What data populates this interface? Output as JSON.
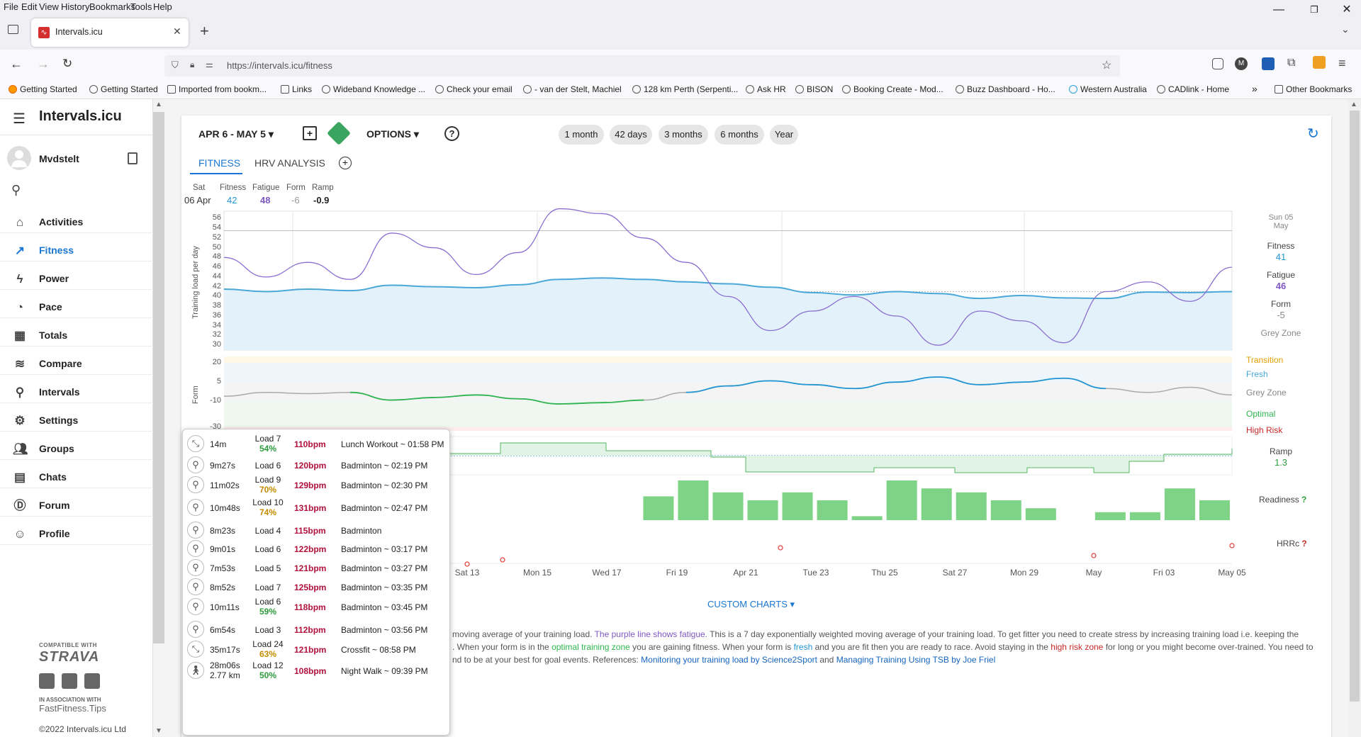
{
  "browser": {
    "menu": [
      "File",
      "Edit",
      "View",
      "History",
      "Bookmarks",
      "Tools",
      "Help"
    ],
    "tab_title": "Intervals.icu",
    "url": "https://intervals.icu/fitness",
    "bookmarks": [
      "Getting Started",
      "Getting Started",
      "Imported from bookm...",
      "Links",
      "Wideband Knowledge ...",
      "Check your email",
      "- van der Stelt, Machiel",
      "128 km Perth (Serpenti...",
      "Ask HR",
      "BISON",
      "Booking Create - Mod...",
      "Buzz Dashboard - Ho...",
      "Western Australia",
      "CADlink - Home"
    ],
    "other_bookmarks": "Other Bookmarks"
  },
  "app": {
    "brand": "Intervals.icu",
    "user": "Mvdstelt",
    "nav": [
      {
        "label": "Activities",
        "icon": "home-icon"
      },
      {
        "label": "Fitness",
        "icon": "trending-icon",
        "active": true
      },
      {
        "label": "Power",
        "icon": "bolt-icon"
      },
      {
        "label": "Pace",
        "icon": "watch-icon"
      },
      {
        "label": "Totals",
        "icon": "calculator-icon"
      },
      {
        "label": "Compare",
        "icon": "compare-icon"
      },
      {
        "label": "Intervals",
        "icon": "search-icon"
      },
      {
        "label": "Settings",
        "icon": "gear-icon"
      },
      {
        "label": "Groups",
        "icon": "group-icon"
      },
      {
        "label": "Chats",
        "icon": "chat-icon"
      },
      {
        "label": "Forum",
        "icon": "forum-icon"
      },
      {
        "label": "Profile",
        "icon": "face-icon"
      }
    ],
    "footer": {
      "compatible": "COMPATIBLE WITH",
      "strava": "STRAVA",
      "assoc": "IN ASSOCIATION WITH",
      "fastfitness": "FastFitness.Tips",
      "copyright": "©2022 Intervals.icu Ltd"
    }
  },
  "toolbar": {
    "date_range": "APR 6 - MAY 5",
    "options": "OPTIONS",
    "ranges": [
      "1 month",
      "42 days",
      "3 months",
      "6 months",
      "Year"
    ]
  },
  "tabs": [
    "FITNESS",
    "HRV ANALYSIS"
  ],
  "day_summary": {
    "dow": "Sat",
    "date": "06 Apr",
    "fitness_label": "Fitness",
    "fitness": "42",
    "fatigue_label": "Fatigue",
    "fatigue": "48",
    "form_label": "Form",
    "form": "-6",
    "ramp_label": "Ramp",
    "ramp": "-0.9"
  },
  "right_panel": {
    "date_line1": "Sun 05",
    "date_line2": "May",
    "fitness_label": "Fitness",
    "fitness": "41",
    "fatigue_label": "Fatigue",
    "fatigue": "46",
    "form_label": "Form",
    "form": "-5",
    "zone": "Grey Zone",
    "zones": [
      "Transition",
      "Fresh",
      "Grey Zone",
      "Optimal",
      "High Risk"
    ],
    "ramp_label": "Ramp",
    "ramp": "1.3",
    "readiness": "Readiness",
    "hrrc": "HRRc",
    "q": "?"
  },
  "chart_data": {
    "type": "line",
    "ylabel": "Training load per day",
    "yticks": [
      56,
      54,
      52,
      50,
      48,
      46,
      44,
      42,
      40,
      38,
      36,
      34,
      32,
      30
    ],
    "form_ylabel": "Form",
    "form_yticks": [
      20,
      5,
      -10,
      -30
    ],
    "xticks": [
      "Sat 13",
      "Mon 15",
      "Wed 17",
      "Fri 19",
      "Apr 21",
      "Tue 23",
      "Thu 25",
      "Sat 27",
      "Mon 29",
      "May",
      "Fri 03",
      "May 05"
    ],
    "series": [
      {
        "name": "Fitness",
        "color": "#4aa8d8",
        "values": [
          41.5,
          41,
          41.5,
          41.2,
          42.3,
          42,
          41.8,
          42.4,
          43.5,
          43.8,
          43.5,
          43,
          42.6,
          41.9,
          40.8,
          40.3,
          41,
          40.6,
          39.6,
          40.2,
          39.7,
          39.6,
          40.9,
          40.8,
          41.0
        ]
      },
      {
        "name": "Fatigue",
        "color": "#8a6fd0",
        "values": [
          48,
          44,
          47,
          43.5,
          53,
          50,
          44.5,
          49,
          58,
          57,
          52,
          47,
          40,
          33,
          37,
          40,
          36,
          30,
          37,
          35,
          30.5,
          41,
          43,
          39,
          46
        ]
      },
      {
        "name": "Form",
        "color": "#aaa",
        "values": [
          -6,
          -3,
          -4,
          -3,
          -9,
          -7,
          -5,
          -8,
          -12,
          -11,
          -9,
          -3,
          2,
          6,
          3,
          0,
          5,
          9,
          3,
          5,
          8,
          0,
          -3,
          1,
          -5
        ]
      }
    ],
    "readiness": [
      0,
      0,
      0,
      0,
      0,
      0,
      0,
      0,
      0,
      0,
      0,
      0,
      6,
      10,
      7,
      5,
      7,
      5,
      1,
      10,
      8,
      7,
      5,
      3,
      0,
      2,
      2,
      8,
      5
    ],
    "colors": {
      "fitness": "#4aa8d8",
      "fatigue": "#8a6fd0",
      "form_neg": "#2fb550",
      "form_pos": "#2196d3",
      "readiness": "#7fd386",
      "transition": "#e0a000",
      "fresh": "#4aa8d8",
      "grey": "#888",
      "optimal": "#2fb550",
      "high_risk": "#c62828"
    }
  },
  "activities": [
    {
      "icon": "expand-icon",
      "dur": "14m",
      "load": "Load 7",
      "pct": "54%",
      "pct_color": "#2e9d3c",
      "bpm": "110bpm",
      "name": "Lunch Workout ~ 01:58 PM"
    },
    {
      "icon": "badminton-icon",
      "dur": "9m27s",
      "load": "Load 6",
      "pct": "",
      "bpm": "120bpm",
      "name": "Badminton ~ 02:19 PM"
    },
    {
      "icon": "badminton-icon",
      "dur": "11m02s",
      "load": "Load 9",
      "pct": "70%",
      "pct_color": "#c68b00",
      "bpm": "129bpm",
      "name": "Badminton ~ 02:30 PM"
    },
    {
      "icon": "badminton-icon",
      "dur": "10m48s",
      "load": "Load 10",
      "pct": "74%",
      "pct_color": "#c68b00",
      "bpm": "131bpm",
      "name": "Badminton ~ 02:47 PM"
    },
    {
      "icon": "badminton-icon",
      "dur": "8m23s",
      "load": "Load 4",
      "pct": "",
      "bpm": "115bpm",
      "name": "Badminton"
    },
    {
      "icon": "badminton-icon",
      "dur": "9m01s",
      "load": "Load 6",
      "pct": "",
      "bpm": "122bpm",
      "name": "Badminton ~ 03:17 PM"
    },
    {
      "icon": "badminton-icon",
      "dur": "7m53s",
      "load": "Load 5",
      "pct": "",
      "bpm": "121bpm",
      "name": "Badminton ~ 03:27 PM"
    },
    {
      "icon": "badminton-icon",
      "dur": "8m52s",
      "load": "Load 7",
      "pct": "",
      "bpm": "125bpm",
      "name": "Badminton ~ 03:35 PM"
    },
    {
      "icon": "badminton-icon",
      "dur": "10m11s",
      "load": "Load 6",
      "pct": "59%",
      "pct_color": "#2e9d3c",
      "bpm": "118bpm",
      "name": "Badminton ~ 03:45 PM"
    },
    {
      "icon": "badminton-icon",
      "dur": "6m54s",
      "load": "Load 3",
      "pct": "",
      "bpm": "112bpm",
      "name": "Badminton ~ 03:56 PM"
    },
    {
      "icon": "expand-icon",
      "dur": "35m17s",
      "load": "Load 24",
      "pct": "63%",
      "pct_color": "#c68b00",
      "bpm": "121bpm",
      "name": "Crossfit ~ 08:58 PM"
    },
    {
      "icon": "walk-icon",
      "dur": "28m06s",
      "dur2": "2.77 km",
      "load": "Load 12",
      "pct": "50%",
      "pct_color": "#2e9d3c",
      "bpm": "108bpm",
      "name": "Night Walk ~ 09:39 PM"
    }
  ],
  "custom_charts": "CUSTOM CHARTS",
  "description": {
    "l1a": "moving average of your training load.",
    "l1b": "The purple line shows fatigue.",
    "l1c": "This is a 7 day exponentially weighted moving average of your training load. To get fitter you need to create stress by increasing training load i.e. keeping the",
    "l2a": ". When your form is in the",
    "l2b": "optimal training zone",
    "l2c": "you are gaining fitness. When your form is",
    "l2d": "fresh",
    "l2e": "and you are fit then you are ready to race. Avoid staying in the",
    "l2f": "high risk zone",
    "l2g": "for long or you might become over-trained. You need to",
    "l3a": "nd to be at your best for goal events. References:",
    "l3b": "Monitoring your training load by Science2Sport",
    "l3c": "and",
    "l3d": "Managing Training Using TSB by Joe Friel"
  }
}
